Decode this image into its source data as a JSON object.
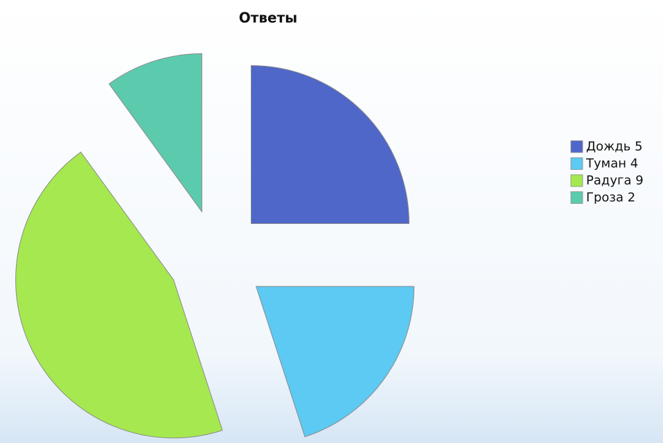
{
  "chart_data": {
    "type": "pie",
    "title": "Ответы",
    "categories": [
      "Дождь 5",
      "Туман 4",
      "Радуга 9",
      "Гроза 2"
    ],
    "values": [
      5,
      4,
      9,
      2
    ],
    "colors": [
      "#4f67c8",
      "#5ccaf2",
      "#a6e84f",
      "#5ccbad"
    ],
    "legend": "right"
  }
}
